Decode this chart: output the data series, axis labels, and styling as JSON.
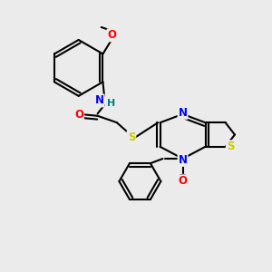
{
  "bg_color": "#ebebeb",
  "atom_colors": {
    "N": "#0000ff",
    "O": "#ff0000",
    "S": "#cccc00",
    "H": "#008080"
  },
  "bond_color": "#000000",
  "bond_width": 1.5
}
